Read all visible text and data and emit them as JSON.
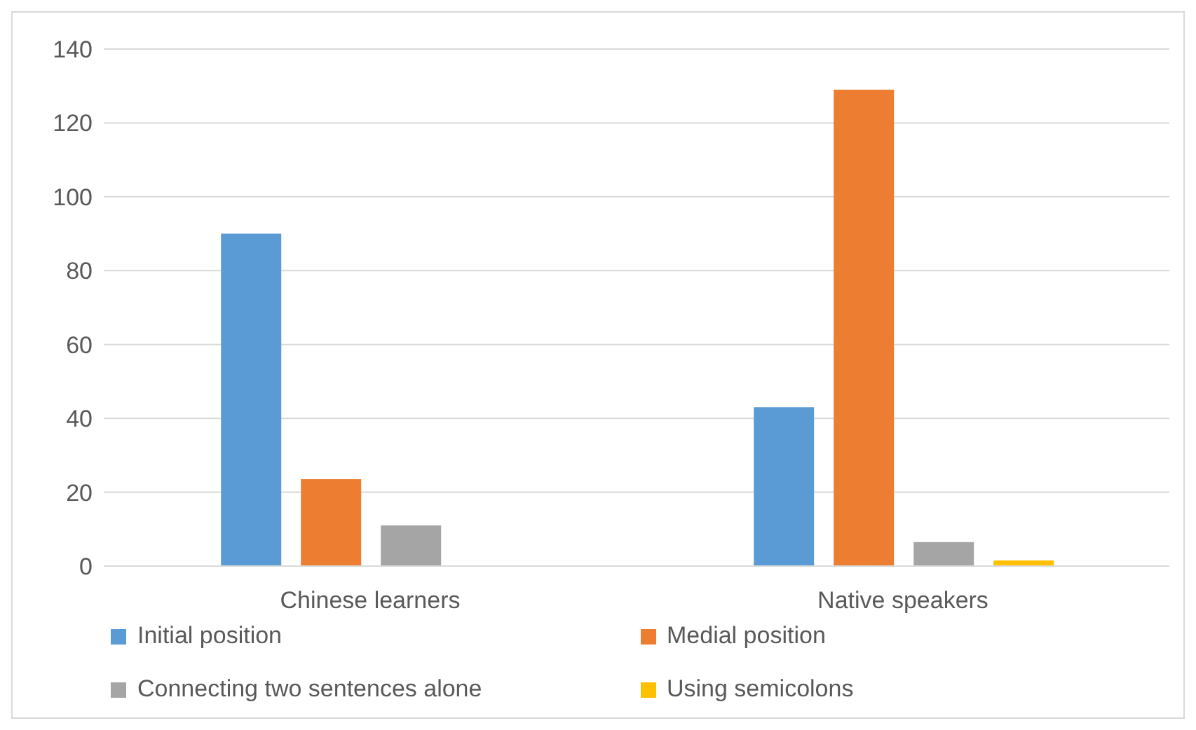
{
  "chart_data": {
    "type": "bar",
    "categories": [
      "Chinese learners",
      "Native speakers"
    ],
    "series": [
      {
        "name": "Initial position",
        "color": "#5b9bd5",
        "values": [
          90,
          43
        ]
      },
      {
        "name": "Medial position",
        "color": "#ed7d31",
        "values": [
          23.5,
          129
        ]
      },
      {
        "name": "Connecting two sentences alone",
        "color": "#a5a5a5",
        "values": [
          11,
          6.5
        ]
      },
      {
        "name": "Using semicolons",
        "color": "#ffc000",
        "values": [
          0,
          1.5
        ]
      }
    ],
    "ylim": [
      0,
      140
    ],
    "yticks": [
      0,
      20,
      40,
      60,
      80,
      100,
      120,
      140
    ],
    "grid": "y",
    "legend": "bottom"
  }
}
